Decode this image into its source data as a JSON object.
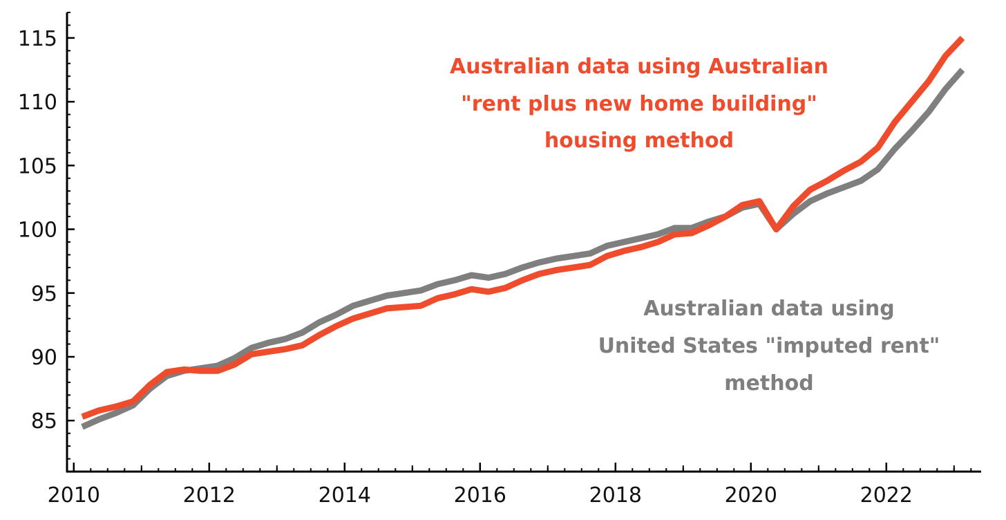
{
  "chart_data": {
    "type": "line",
    "title": "",
    "xlabel": "",
    "ylabel": "",
    "xlim": [
      2009.9,
      2023.4
    ],
    "ylim": [
      81.0,
      117.0
    ],
    "x_ticks": [
      "2010",
      "2012",
      "2014",
      "2016",
      "2018",
      "2020",
      "2022"
    ],
    "y_ticks": [
      "85",
      "90",
      "95",
      "100",
      "105",
      "110",
      "115"
    ],
    "grid": false,
    "series": [
      {
        "color": "#ee4c2c",
        "x": [
          2010.125,
          2010.375,
          2010.625,
          2010.875,
          2011.125,
          2011.375,
          2011.625,
          2011.875,
          2012.125,
          2012.375,
          2012.625,
          2012.875,
          2013.125,
          2013.375,
          2013.625,
          2013.875,
          2014.125,
          2014.375,
          2014.625,
          2014.875,
          2015.125,
          2015.375,
          2015.625,
          2015.875,
          2016.125,
          2016.375,
          2016.625,
          2016.875,
          2017.125,
          2017.375,
          2017.625,
          2017.875,
          2018.125,
          2018.375,
          2018.625,
          2018.875,
          2019.125,
          2019.375,
          2019.625,
          2019.875,
          2020.125,
          2020.375,
          2020.625,
          2020.875,
          2021.125,
          2021.375,
          2021.625,
          2021.875,
          2022.125,
          2022.375,
          2022.625,
          2022.875,
          2023.125
        ],
        "values": [
          85.3,
          85.8,
          86.1,
          86.5,
          87.8,
          88.8,
          89.0,
          88.9,
          88.9,
          89.4,
          90.2,
          90.4,
          90.6,
          90.9,
          91.7,
          92.4,
          93.0,
          93.4,
          93.8,
          93.9,
          94.0,
          94.6,
          94.9,
          95.3,
          95.1,
          95.4,
          96.0,
          96.5,
          96.8,
          97.0,
          97.2,
          97.9,
          98.3,
          98.6,
          99.0,
          99.6,
          99.7,
          100.3,
          101.0,
          101.9,
          102.2,
          100.0,
          101.8,
          103.1,
          103.8,
          104.6,
          105.3,
          106.4,
          108.4,
          110.0,
          111.6,
          113.6,
          115.0
        ]
      },
      {
        "color": "#7f7f7f",
        "x": [
          2010.125,
          2010.375,
          2010.625,
          2010.875,
          2011.125,
          2011.375,
          2011.625,
          2011.875,
          2012.125,
          2012.375,
          2012.625,
          2012.875,
          2013.125,
          2013.375,
          2013.625,
          2013.875,
          2014.125,
          2014.375,
          2014.625,
          2014.875,
          2015.125,
          2015.375,
          2015.625,
          2015.875,
          2016.125,
          2016.375,
          2016.625,
          2016.875,
          2017.125,
          2017.375,
          2017.625,
          2017.875,
          2018.125,
          2018.375,
          2018.625,
          2018.875,
          2019.125,
          2019.375,
          2019.625,
          2019.875,
          2020.125,
          2020.375,
          2020.625,
          2020.875,
          2021.125,
          2021.375,
          2021.625,
          2021.875,
          2022.125,
          2022.375,
          2022.625,
          2022.875,
          2023.125
        ],
        "values": [
          84.5,
          85.1,
          85.6,
          86.2,
          87.5,
          88.5,
          88.9,
          89.1,
          89.3,
          89.9,
          90.7,
          91.1,
          91.4,
          91.9,
          92.7,
          93.3,
          94.0,
          94.4,
          94.8,
          95.0,
          95.2,
          95.7,
          96.0,
          96.4,
          96.2,
          96.5,
          97.0,
          97.4,
          97.7,
          97.9,
          98.1,
          98.7,
          99.0,
          99.3,
          99.6,
          100.1,
          100.1,
          100.6,
          101.0,
          101.7,
          102.0,
          100.0,
          101.2,
          102.2,
          102.8,
          103.3,
          103.8,
          104.7,
          106.3,
          107.7,
          109.2,
          111.0,
          112.5
        ]
      }
    ],
    "annotations": [
      {
        "color": "#ee4c2c",
        "lines": [
          "Australian data using Australian",
          "\"rent plus new home building\"",
          "housing method"
        ]
      },
      {
        "color": "#7f7f7f",
        "lines": [
          "Australian data using",
          "United States \"imputed rent\"",
          "method"
        ]
      }
    ]
  }
}
